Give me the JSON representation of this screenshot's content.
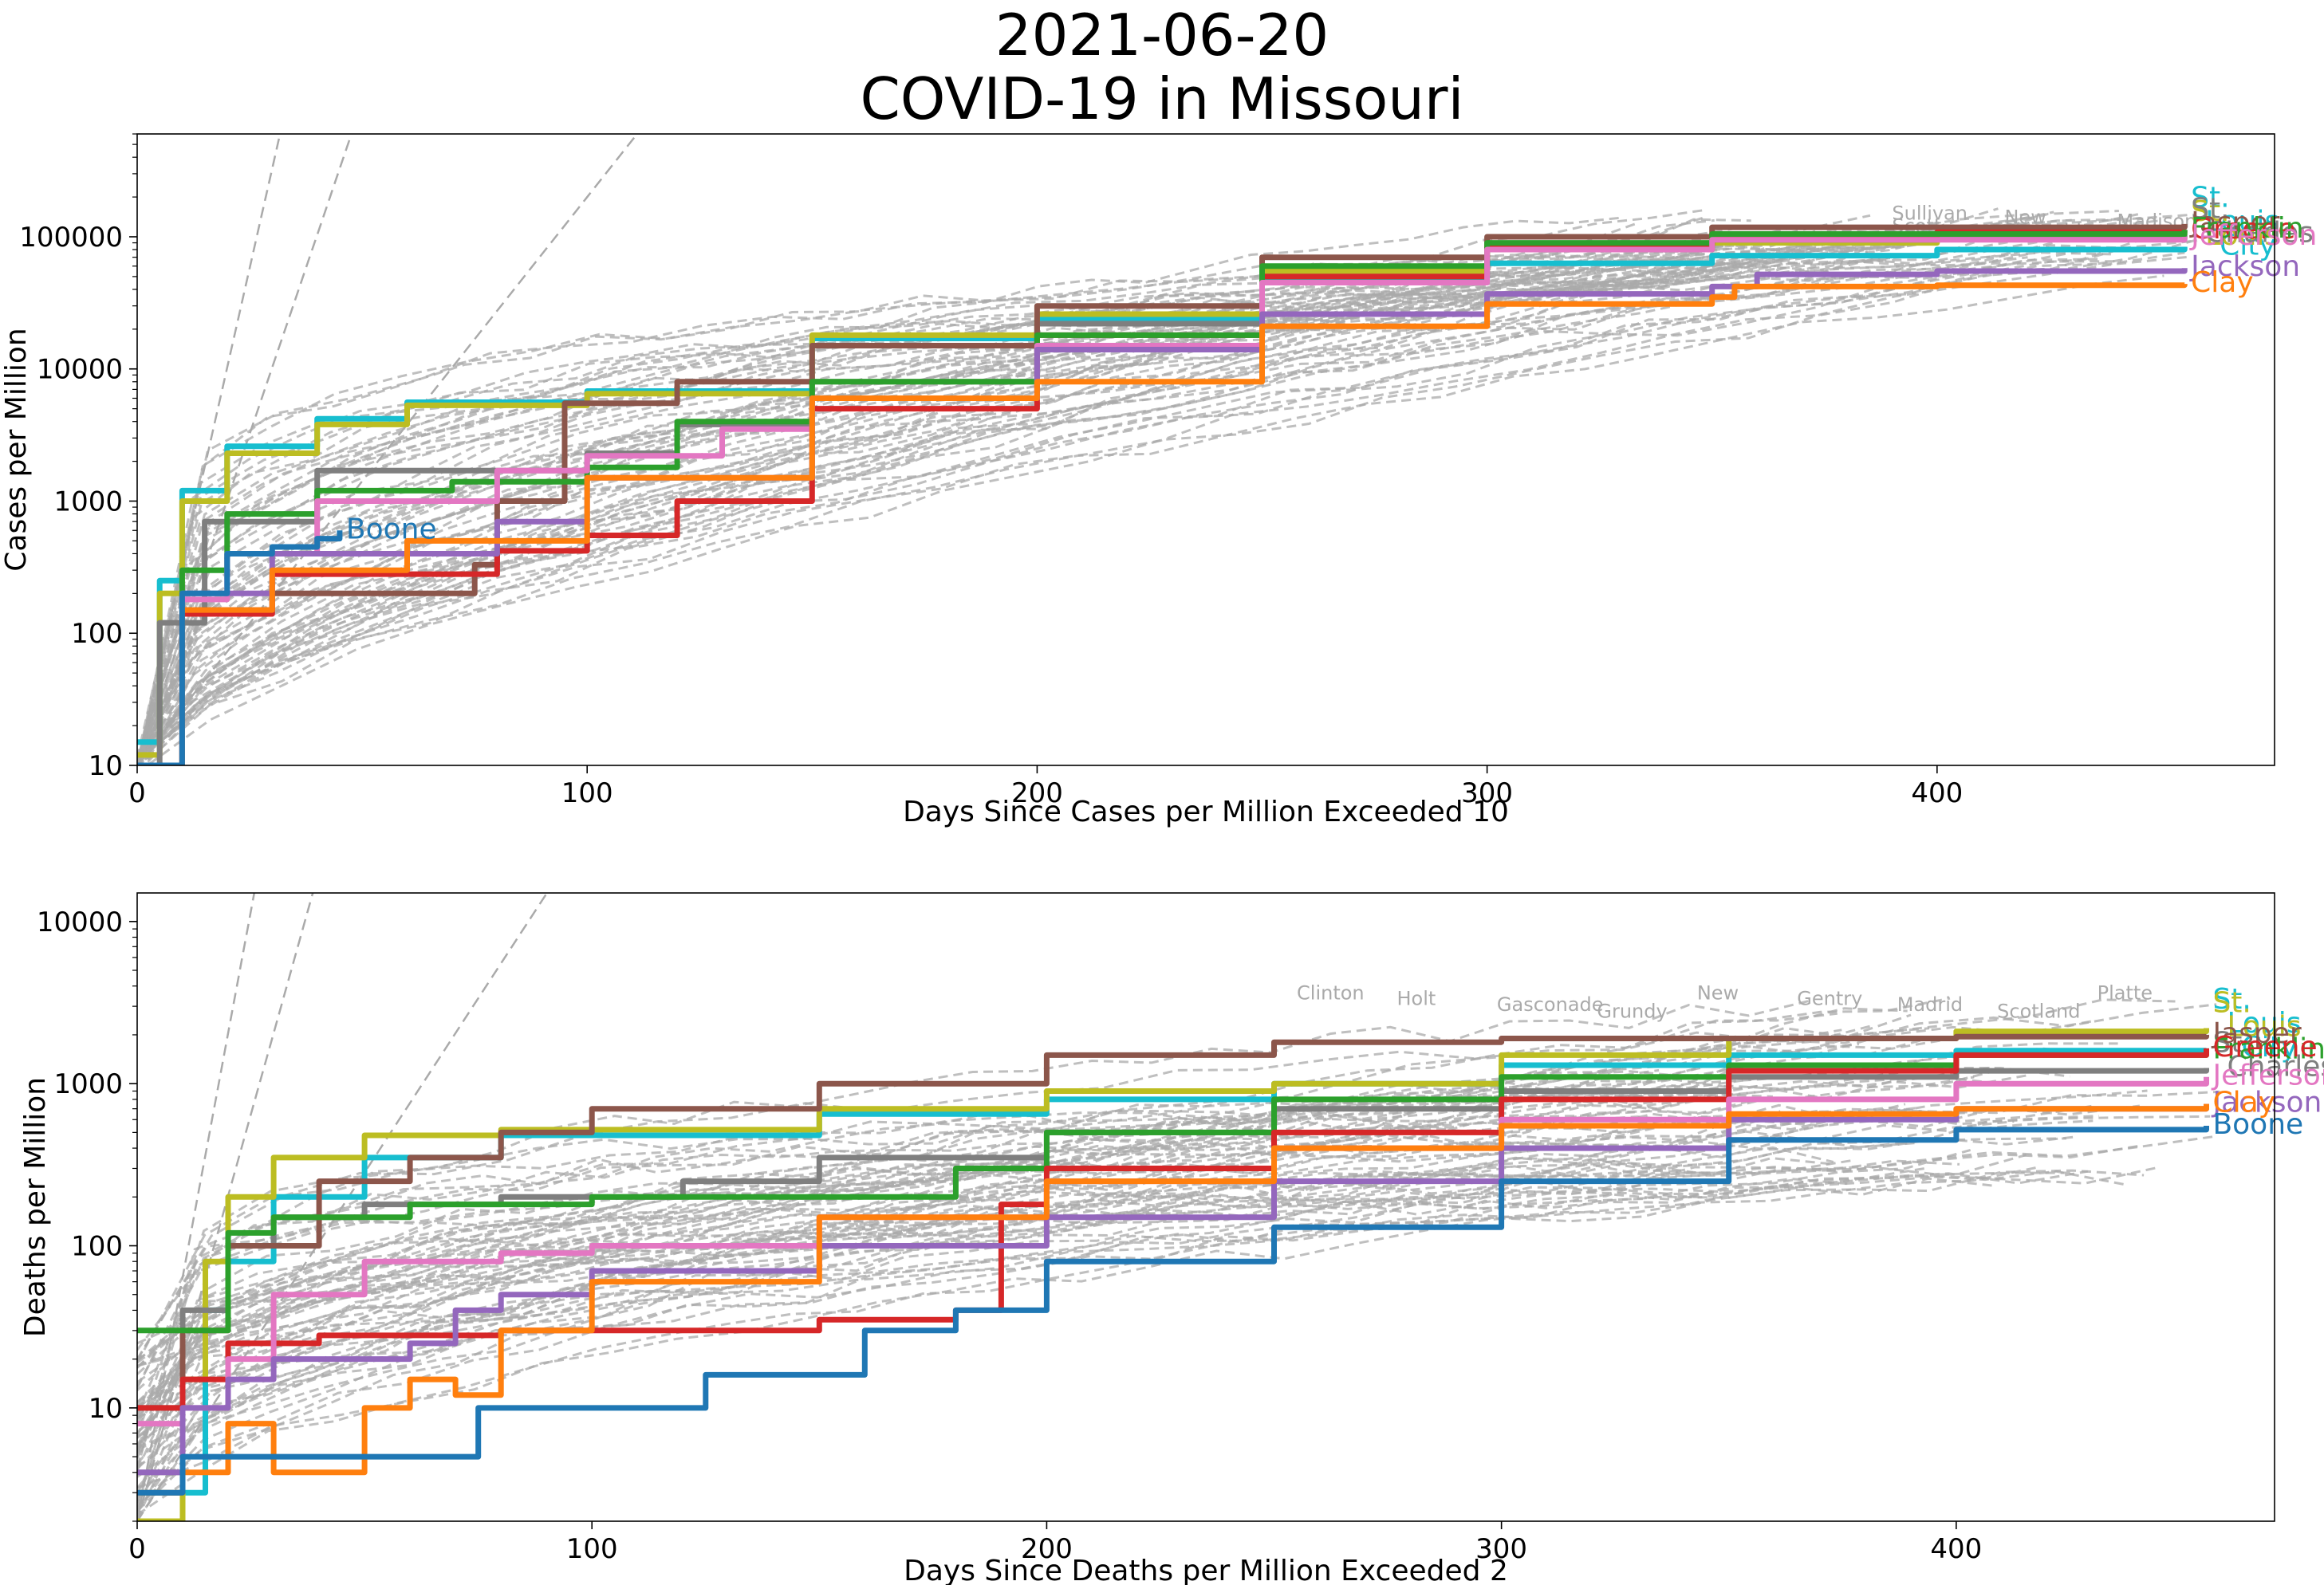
{
  "title_line1": "2021-06-20",
  "title_line2": "COVID-19 in Missouri",
  "colors": {
    "Boone": "#1f77b4",
    "Clay": "#ff7f0e",
    "Franklin": "#2ca02c",
    "Greene": "#d62728",
    "Jackson": "#9467bd",
    "Jasper": "#8c564b",
    "Jefferson": "#e377c2",
    "St. Charles": "#7f7f7f",
    "St. Louis": "#bcbd22",
    "St. Louis City": "#17becf",
    "background": "#aaaaaa"
  },
  "chart_data": [
    {
      "type": "line",
      "xlabel": "Days Since Cases per Million Exceeded 10",
      "ylabel": "Cases per Million",
      "y_scale": "log",
      "xlim": [
        0,
        475
      ],
      "ylim": [
        10,
        600000
      ],
      "xticks": [
        "0",
        "100",
        "200",
        "300",
        "400"
      ],
      "yticks": [
        "10",
        "100",
        "1000",
        "10000",
        "100000"
      ],
      "background_labels": [
        "Sullivan",
        "New",
        "Madison",
        "Scott",
        "Reynolds"
      ],
      "series": [
        {
          "name": "St. Louis City",
          "x": [
            0,
            5,
            10,
            20,
            40,
            60,
            100,
            150,
            200,
            250,
            300,
            350,
            400,
            455
          ],
          "y": [
            15,
            250,
            1200,
            2600,
            4200,
            5600,
            6800,
            17000,
            24000,
            47000,
            63000,
            72000,
            80000,
            84000
          ]
        },
        {
          "name": "St. Louis",
          "x": [
            0,
            5,
            10,
            20,
            40,
            60,
            100,
            150,
            200,
            250,
            300,
            350,
            400,
            455
          ],
          "y": [
            12,
            200,
            1000,
            2300,
            3800,
            5300,
            6500,
            18000,
            26000,
            55000,
            80000,
            90000,
            96000,
            100000
          ]
        },
        {
          "name": "St. Charles",
          "x": [
            0,
            5,
            15,
            40,
            100,
            120,
            150,
            200,
            250,
            300,
            350,
            400,
            455
          ],
          "y": [
            10,
            120,
            700,
            1700,
            2300,
            3800,
            8000,
            22000,
            50000,
            80000,
            95000,
            100000,
            105000
          ]
        },
        {
          "name": "Jasper",
          "x": [
            0,
            10,
            30,
            75,
            80,
            95,
            120,
            150,
            200,
            250,
            300,
            350,
            455
          ],
          "y": [
            10,
            150,
            200,
            330,
            1000,
            5500,
            8000,
            15000,
            30000,
            70000,
            100000,
            118000,
            125000
          ]
        },
        {
          "name": "Greene",
          "x": [
            0,
            10,
            30,
            80,
            100,
            120,
            150,
            200,
            250,
            300,
            350,
            400,
            455
          ],
          "y": [
            10,
            140,
            280,
            420,
            550,
            1000,
            5000,
            18000,
            50000,
            85000,
            100000,
            108000,
            112000
          ]
        },
        {
          "name": "Franklin",
          "x": [
            0,
            10,
            20,
            40,
            70,
            100,
            120,
            150,
            200,
            250,
            300,
            350,
            455
          ],
          "y": [
            10,
            300,
            800,
            1200,
            1400,
            1800,
            4000,
            8000,
            18000,
            60000,
            90000,
            105000,
            113000
          ]
        },
        {
          "name": "Jefferson",
          "x": [
            0,
            10,
            20,
            40,
            80,
            100,
            130,
            150,
            200,
            250,
            300,
            350,
            455
          ],
          "y": [
            10,
            180,
            400,
            1000,
            1700,
            2200,
            3500,
            6000,
            15000,
            45000,
            80000,
            95000,
            100000
          ]
        },
        {
          "name": "Jackson",
          "x": [
            0,
            10,
            30,
            80,
            100,
            150,
            200,
            250,
            300,
            350,
            360,
            400,
            455
          ],
          "y": [
            10,
            200,
            400,
            700,
            1500,
            6000,
            14000,
            26000,
            37000,
            42000,
            52000,
            55000,
            58000
          ]
        },
        {
          "name": "Clay",
          "x": [
            0,
            10,
            30,
            60,
            100,
            150,
            200,
            250,
            300,
            350,
            355,
            400,
            455
          ],
          "y": [
            10,
            150,
            300,
            500,
            1500,
            6000,
            8000,
            21000,
            31000,
            35000,
            42000,
            43000,
            44000
          ]
        },
        {
          "name": "Boone",
          "x": [
            0,
            10,
            20,
            30,
            40,
            45
          ],
          "y": [
            10,
            200,
            400,
            450,
            520,
            600
          ]
        }
      ]
    },
    {
      "type": "line",
      "xlabel": "Days Since Deaths per Million Exceeded 2",
      "ylabel": "Deaths per Million",
      "y_scale": "log",
      "xlim": [
        0,
        470
      ],
      "ylim": [
        2,
        15000
      ],
      "xticks": [
        "0",
        "100",
        "200",
        "300",
        "400"
      ],
      "yticks": [
        "10",
        "100",
        "1000",
        "10000"
      ],
      "background_labels": [
        "Clinton",
        "Holt",
        "Gasconade",
        "Grundy",
        "New",
        "Gentry",
        "Madrid",
        "Scotland",
        "Platte"
      ],
      "series": [
        {
          "name": "St. Louis City",
          "x": [
            0,
            5,
            10,
            15,
            20,
            30,
            50,
            80,
            150,
            200,
            250,
            300,
            350,
            400,
            455
          ],
          "y": [
            3,
            3,
            3,
            40,
            80,
            200,
            350,
            480,
            650,
            800,
            1000,
            1300,
            1500,
            1600,
            1650
          ]
        },
        {
          "name": "St. Louis",
          "x": [
            0,
            5,
            10,
            15,
            20,
            30,
            50,
            80,
            150,
            200,
            250,
            300,
            350,
            400,
            455
          ],
          "y": [
            2,
            2,
            15,
            80,
            200,
            350,
            480,
            520,
            700,
            900,
            1000,
            1500,
            1900,
            2100,
            2200
          ]
        },
        {
          "name": "St. Charles",
          "x": [
            0,
            10,
            20,
            30,
            50,
            80,
            120,
            150,
            200,
            250,
            300,
            350,
            400,
            455
          ],
          "y": [
            4,
            40,
            100,
            150,
            180,
            200,
            250,
            350,
            500,
            700,
            900,
            1100,
            1200,
            1250
          ]
        },
        {
          "name": "Jasper",
          "x": [
            0,
            10,
            20,
            40,
            60,
            80,
            100,
            150,
            200,
            250,
            300,
            350,
            400,
            455
          ],
          "y": [
            10,
            30,
            100,
            250,
            350,
            500,
            700,
            1000,
            1500,
            1800,
            1900,
            1900,
            1950,
            2000
          ]
        },
        {
          "name": "Franklin",
          "x": [
            0,
            10,
            20,
            30,
            60,
            100,
            150,
            180,
            200,
            250,
            300,
            350,
            400,
            455
          ],
          "y": [
            30,
            30,
            120,
            150,
            180,
            200,
            200,
            300,
            500,
            800,
            1100,
            1300,
            1500,
            1600
          ]
        },
        {
          "name": "Greene",
          "x": [
            0,
            10,
            20,
            40,
            80,
            100,
            150,
            180,
            190,
            200,
            250,
            300,
            350,
            400,
            455
          ],
          "y": [
            10,
            15,
            25,
            28,
            30,
            30,
            35,
            40,
            180,
            300,
            500,
            800,
            1200,
            1500,
            1650
          ]
        },
        {
          "name": "Jefferson",
          "x": [
            0,
            10,
            20,
            30,
            50,
            80,
            100,
            150,
            200,
            250,
            300,
            350,
            400,
            455
          ],
          "y": [
            8,
            10,
            20,
            50,
            80,
            90,
            100,
            150,
            250,
            400,
            600,
            800,
            1000,
            1100
          ]
        },
        {
          "name": "Jackson",
          "x": [
            0,
            10,
            20,
            30,
            60,
            70,
            80,
            100,
            150,
            200,
            250,
            300,
            350,
            400,
            455
          ],
          "y": [
            4,
            10,
            15,
            20,
            25,
            40,
            50,
            70,
            100,
            150,
            250,
            400,
            600,
            700,
            750
          ]
        },
        {
          "name": "Clay",
          "x": [
            0,
            10,
            20,
            30,
            40,
            50,
            60,
            70,
            80,
            100,
            150,
            200,
            250,
            300,
            350,
            400,
            455
          ],
          "y": [
            3,
            4,
            8,
            4,
            4,
            10,
            15,
            12,
            30,
            60,
            150,
            250,
            400,
            550,
            650,
            700,
            750
          ]
        },
        {
          "name": "Boone",
          "x": [
            0,
            10,
            40,
            75,
            100,
            125,
            150,
            160,
            180,
            200,
            220,
            250,
            300,
            350,
            400,
            455
          ],
          "y": [
            3,
            5,
            5,
            10,
            10,
            16,
            16,
            30,
            40,
            80,
            80,
            130,
            250,
            450,
            520,
            550
          ]
        }
      ]
    }
  ]
}
